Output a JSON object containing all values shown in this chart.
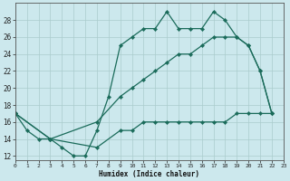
{
  "xlabel": "Humidex (Indice chaleur)",
  "bg_color": "#cce8ed",
  "grid_color": "#b0d4dc",
  "line_color": "#1a6b5a",
  "xlim": [
    0,
    23
  ],
  "ylim": [
    11.5,
    30
  ],
  "yticks": [
    12,
    14,
    16,
    18,
    20,
    22,
    24,
    26,
    28
  ],
  "xticks": [
    0,
    1,
    2,
    3,
    4,
    5,
    6,
    7,
    8,
    9,
    10,
    11,
    12,
    13,
    14,
    15,
    16,
    17,
    18,
    19,
    20,
    21,
    22,
    23
  ],
  "series": [
    {
      "x": [
        0,
        1,
        2,
        3,
        4,
        5,
        6,
        7,
        8,
        9,
        10,
        11,
        12,
        13,
        14,
        15,
        16,
        17,
        18,
        19,
        20,
        21,
        22
      ],
      "y": [
        17,
        15,
        14,
        14,
        13,
        12,
        12,
        15,
        19,
        25,
        26,
        27,
        27,
        29,
        27,
        27,
        27,
        29,
        28,
        26,
        25,
        22,
        17
      ]
    },
    {
      "x": [
        0,
        3,
        7,
        9,
        10,
        11,
        12,
        13,
        14,
        15,
        16,
        17,
        18,
        19,
        20,
        21,
        22
      ],
      "y": [
        17,
        14,
        16,
        19,
        20,
        21,
        22,
        23,
        24,
        24,
        25,
        26,
        26,
        26,
        25,
        22,
        17
      ]
    },
    {
      "x": [
        0,
        3,
        7,
        9,
        10,
        11,
        12,
        13,
        14,
        15,
        16,
        17,
        18,
        19,
        20,
        21,
        22
      ],
      "y": [
        17,
        14,
        13,
        15,
        15,
        16,
        16,
        16,
        16,
        16,
        16,
        16,
        16,
        17,
        17,
        17,
        17
      ]
    }
  ]
}
